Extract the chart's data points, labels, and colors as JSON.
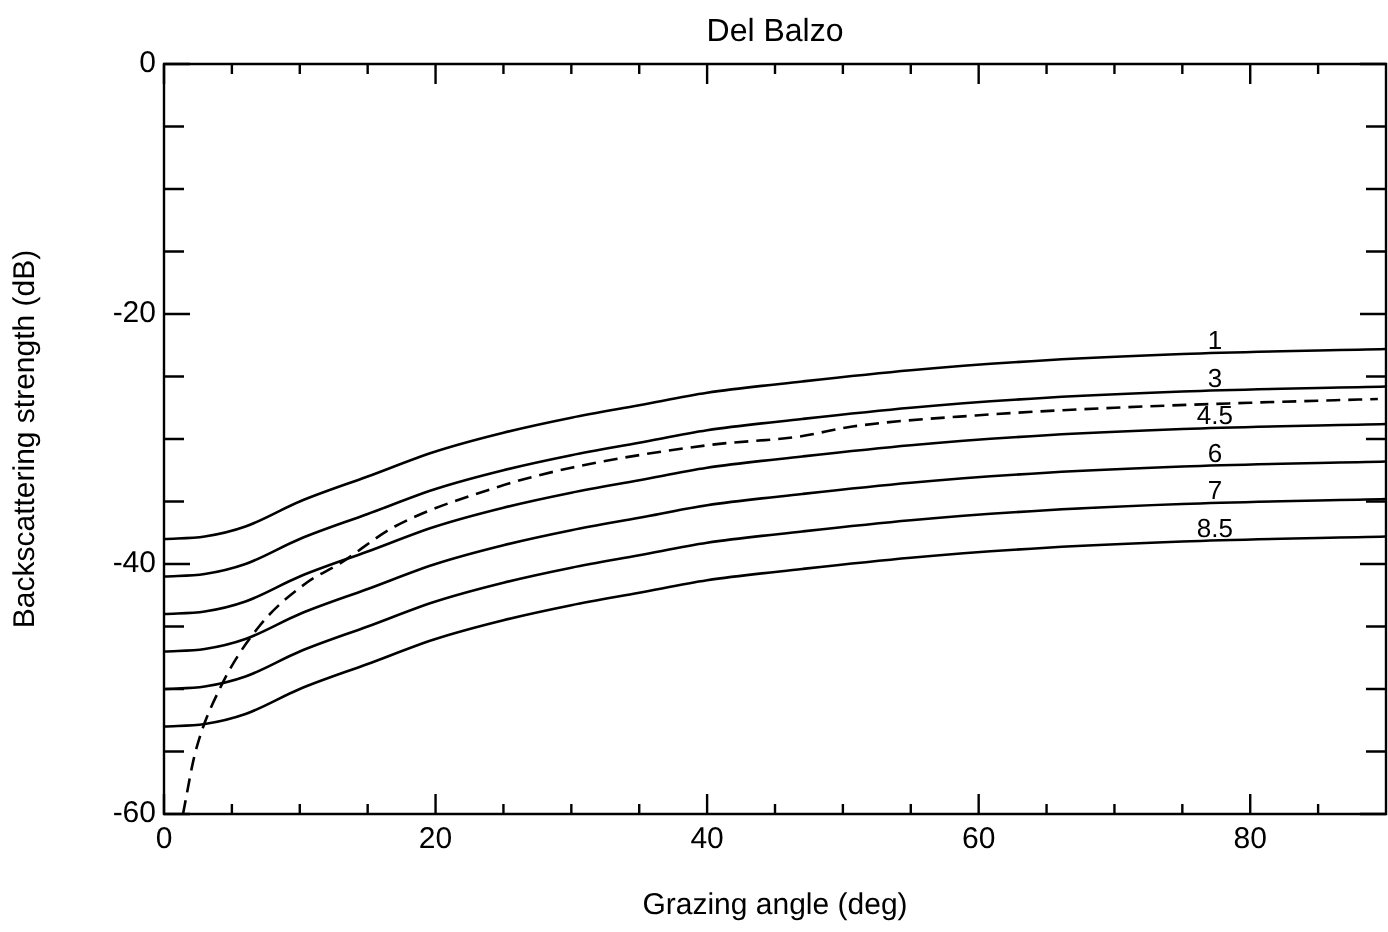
{
  "chart_data": {
    "type": "line",
    "title": "Del Balzo",
    "xlabel": "Grazing angle (deg)",
    "ylabel": "Backscattering strength (dB)",
    "xlim": [
      0,
      90
    ],
    "ylim": [
      -60,
      0
    ],
    "xticks": [
      0,
      {
        "value": 5,
        "label": null
      },
      {
        "value": 10,
        "label": null
      },
      {
        "value": 15,
        "label": null
      },
      20,
      {
        "value": 25,
        "label": null
      },
      {
        "value": 30,
        "label": null
      },
      {
        "value": 35,
        "label": null
      },
      40,
      {
        "value": 45,
        "label": null
      },
      {
        "value": 50,
        "label": null
      },
      {
        "value": 55,
        "label": null
      },
      60,
      {
        "value": 65,
        "label": null
      },
      {
        "value": 70,
        "label": null
      },
      {
        "value": 75,
        "label": null
      },
      80,
      {
        "value": 85,
        "label": null
      }
    ],
    "yticks": [
      -60,
      {
        "value": -55,
        "label": null
      },
      {
        "value": -50,
        "label": null
      },
      {
        "value": -45,
        "label": null
      },
      -40,
      {
        "value": -35,
        "label": null
      },
      {
        "value": -30,
        "label": null
      },
      {
        "value": -25,
        "label": null
      },
      -20,
      {
        "value": -15,
        "label": null
      },
      {
        "value": -10,
        "label": null
      },
      {
        "value": -5,
        "label": null
      },
      0
    ],
    "x": [
      0,
      3,
      6,
      10,
      15,
      20,
      25,
      30,
      35,
      40,
      47,
      55,
      65,
      75,
      90
    ],
    "marker": "none",
    "grid": false,
    "legend": false,
    "series": [
      {
        "name": "1",
        "color": "#000000",
        "line_style": "solid",
        "values": [
          -38,
          -37.8,
          -37,
          -35,
          -33,
          -31,
          -29.5,
          -28.3,
          -27.3,
          -26.3,
          -25.4,
          -24.5,
          -23.7,
          -23.2,
          -22.8
        ]
      },
      {
        "name": "3",
        "color": "#000000",
        "line_style": "solid",
        "values": [
          -41,
          -40.8,
          -40,
          -38,
          -36,
          -34,
          -32.5,
          -31.3,
          -30.3,
          -29.3,
          -28.4,
          -27.5,
          -26.7,
          -26.2,
          -25.8
        ]
      },
      {
        "name": "4.5",
        "color": "#000000",
        "line_style": "solid",
        "values": [
          -44,
          -43.8,
          -43,
          -41,
          -39,
          -37,
          -35.5,
          -34.3,
          -33.3,
          -32.3,
          -31.4,
          -30.5,
          -29.7,
          -29.2,
          -28.8
        ]
      },
      {
        "name": "6",
        "color": "#000000",
        "line_style": "solid",
        "values": [
          -47,
          -46.8,
          -46,
          -44,
          -42,
          -40,
          -38.5,
          -37.3,
          -36.3,
          -35.3,
          -34.4,
          -33.5,
          -32.7,
          -32.2,
          -31.8
        ]
      },
      {
        "name": "7",
        "color": "#000000",
        "line_style": "solid",
        "values": [
          -50,
          -49.8,
          -49,
          -47,
          -45,
          -43,
          -41.5,
          -40.3,
          -39.3,
          -38.3,
          -37.4,
          -36.5,
          -35.7,
          -35.2,
          -34.8
        ]
      },
      {
        "name": "8.5",
        "color": "#000000",
        "line_style": "solid",
        "values": [
          -53,
          -52.8,
          -52,
          -50,
          -48,
          -46,
          -44.5,
          -43.3,
          -42.3,
          -41.3,
          -40.4,
          -39.5,
          -38.7,
          -38.2,
          -37.8
        ]
      },
      {
        "color": "#000000",
        "line_style": "dashed",
        "x": [
          1.4,
          2.3,
          4.1,
          7,
          10.5,
          12.9,
          17,
          24.7,
          30,
          40,
          46.8,
          50.7,
          60,
          70,
          80,
          89.4
        ],
        "values": [
          -60,
          -55.1,
          -50,
          -45,
          -41.5,
          -40,
          -37,
          -33.8,
          -32.3,
          -30.5,
          -29.8,
          -29,
          -28.1,
          -27.5,
          -27.1,
          -26.8
        ]
      }
    ]
  }
}
